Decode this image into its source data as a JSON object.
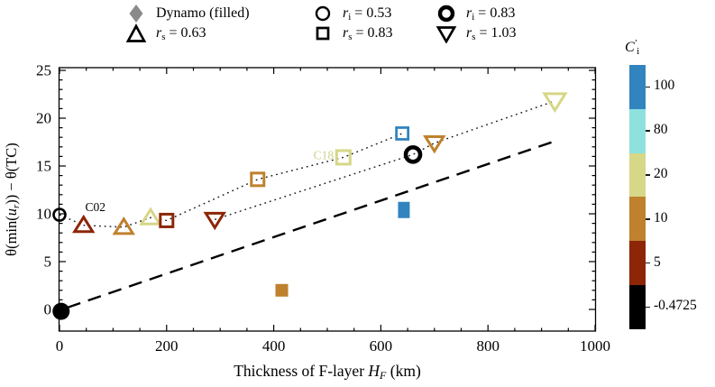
{
  "palette": {
    "blue": "#3284bf",
    "cyan": "#8fe1de",
    "khaki": "#d6d787",
    "tan": "#bf812d",
    "darkred": "#8c2606",
    "black": "#000000",
    "gray": "#8a8a8a",
    "annotation_khaki": "#cfd18a"
  },
  "legend": {
    "items": [
      {
        "marker": "diamond-filled",
        "label": {
          "pre": "Dynamo (filled)",
          "var": "",
          "sub": "",
          "post": ""
        }
      },
      {
        "marker": "circle-thin",
        "label": {
          "pre": "",
          "var": "r",
          "sub": "i",
          "post": " = 0.53"
        }
      },
      {
        "marker": "circle-thick",
        "label": {
          "pre": "",
          "var": "r",
          "sub": "i",
          "post": " = 0.83"
        }
      },
      {
        "marker": "triangle-up",
        "label": {
          "pre": "",
          "var": "r",
          "sub": "s",
          "post": " = 0.63"
        }
      },
      {
        "marker": "square",
        "label": {
          "pre": "",
          "var": "r",
          "sub": "s",
          "post": " = 0.83"
        }
      },
      {
        "marker": "triangle-down",
        "label": {
          "pre": "",
          "var": "r",
          "sub": "s",
          "post": " = 1.03"
        }
      }
    ]
  },
  "axis": {
    "xlabel": {
      "pre": "Thickness of F-layer ",
      "var": "H",
      "sub": "F",
      "post": " (km)"
    },
    "ylabel": {
      "p1": "θ(min(",
      "uvar": "u",
      "sub": "r",
      "p2": ")) − θ(TC)"
    }
  },
  "colorbar": {
    "title": {
      "letter": "C",
      "prime": "′",
      "sub": "i"
    },
    "bands": [
      {
        "color_key": "blue",
        "label": "100"
      },
      {
        "color_key": "cyan",
        "label": "80"
      },
      {
        "color_key": "khaki",
        "label": "20"
      },
      {
        "color_key": "tan",
        "label": "10"
      },
      {
        "color_key": "darkred",
        "label": "5"
      },
      {
        "color_key": "black",
        "label": "-0.4725"
      }
    ]
  },
  "chart_data": {
    "type": "scatter",
    "title": "",
    "xlabel": "Thickness of F-layer H_F (km)",
    "ylabel": "theta(min(u_r)) - theta(TC)",
    "xlim": [
      0,
      1000
    ],
    "ylim": [
      -2.3,
      25.3
    ],
    "xticks": [
      0,
      200,
      400,
      600,
      800,
      1000
    ],
    "yticks": [
      0,
      5,
      10,
      15,
      20,
      25
    ],
    "x_minor_step": 50,
    "y_minor_step": 1,
    "grid": false,
    "legend_position": "top-outside",
    "colorbar_label": "C_i'",
    "colorbar_values": [
      100,
      80,
      20,
      10,
      5,
      -0.4725
    ],
    "points": [
      {
        "x": 3,
        "y": -0.2,
        "marker": "circle",
        "filled": true,
        "color_key": "black",
        "ci": -0.4725,
        "r": 9.5,
        "note": "dynamo"
      },
      {
        "x": 0,
        "y": 9.9,
        "marker": "circle",
        "filled": false,
        "color_key": "black",
        "ci": -0.4725,
        "r": 6.5,
        "sw": 2.6,
        "note": "C02"
      },
      {
        "x": 45,
        "y": 8.8,
        "marker": "triangle-up",
        "filled": false,
        "color_key": "darkred",
        "ci": 5,
        "sw": 3
      },
      {
        "x": 120,
        "y": 8.6,
        "marker": "triangle-up",
        "filled": false,
        "color_key": "tan",
        "ci": 10,
        "sw": 3
      },
      {
        "x": 170,
        "y": 9.6,
        "marker": "triangle-up",
        "filled": false,
        "color_key": "khaki",
        "ci": 20,
        "sw": 3
      },
      {
        "x": 200,
        "y": 9.3,
        "marker": "square",
        "filled": false,
        "color_key": "darkred",
        "ci": 5,
        "sw": 3,
        "hs": 7
      },
      {
        "x": 290,
        "y": 9.4,
        "marker": "triangle-down",
        "filled": false,
        "color_key": "darkred",
        "ci": 5,
        "sw": 3
      },
      {
        "x": 370,
        "y": 13.6,
        "marker": "square",
        "filled": false,
        "color_key": "tan",
        "ci": 10,
        "sw": 3,
        "hs": 7
      },
      {
        "x": 415,
        "y": 2.0,
        "marker": "square",
        "filled": true,
        "color_key": "tan",
        "ci": 10,
        "hs": 7,
        "note": "dynamo"
      },
      {
        "x": 530,
        "y": 15.9,
        "marker": "square",
        "filled": false,
        "color_key": "khaki",
        "ci": 20,
        "sw": 3,
        "hs": 7.5,
        "note": "C18"
      },
      {
        "x": 640,
        "y": 18.4,
        "marker": "square",
        "filled": false,
        "color_key": "blue",
        "ci": 100,
        "sw": 2.8,
        "hs": 6.5
      },
      {
        "x": 643,
        "y": 10.4,
        "marker": "rect",
        "filled": true,
        "color_key": "blue",
        "ci": 100,
        "hw": 6.5,
        "hh": 9,
        "note": "dynamo"
      },
      {
        "x": 660,
        "y": 16.2,
        "marker": "circle",
        "filled": false,
        "color_key": "black",
        "ci": -0.4725,
        "r": 8,
        "sw": 4.6
      },
      {
        "x": 700,
        "y": 17.4,
        "marker": "triangle-down",
        "filled": false,
        "color_key": "tan",
        "ci": 10,
        "sw": 3
      },
      {
        "x": 925,
        "y": 21.8,
        "marker": "triangle-down",
        "filled": false,
        "color_key": "khaki",
        "ci": 20,
        "sw": 3,
        "scale": 1.15
      }
    ],
    "lines": [
      {
        "name": "dashed-trend",
        "style": "dashed",
        "color": "#000000",
        "points": [
          [
            15,
            0.2
          ],
          [
            920,
            17.5
          ]
        ]
      },
      {
        "name": "dotted-series-upper",
        "style": "dotted",
        "color": "#1a1a1a",
        "points": [
          [
            0,
            9.9
          ],
          [
            45,
            8.8
          ],
          [
            120,
            8.6
          ],
          [
            170,
            9.6
          ],
          [
            200,
            9.3
          ],
          [
            370,
            13.6
          ],
          [
            530,
            15.9
          ],
          [
            640,
            18.4
          ]
        ]
      },
      {
        "name": "dotted-series-lower",
        "style": "dotted",
        "color": "#1a1a1a",
        "points": [
          [
            290,
            9.4
          ],
          [
            660,
            16.2
          ],
          [
            700,
            17.4
          ],
          [
            925,
            21.8
          ]
        ]
      }
    ],
    "annotations": [
      {
        "text": "C02",
        "x": 48,
        "y": 10.3,
        "anchor": "start",
        "color_key": "black"
      },
      {
        "text": "C18",
        "x": 512,
        "y": 15.7,
        "anchor": "end",
        "color_key": "annotation_khaki"
      }
    ]
  }
}
